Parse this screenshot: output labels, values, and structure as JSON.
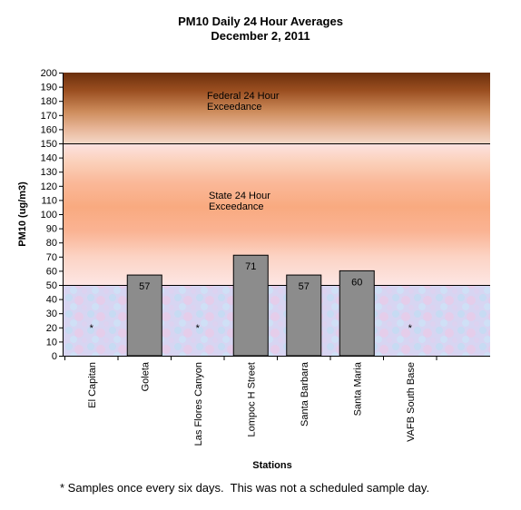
{
  "chart_data": {
    "type": "bar",
    "title": "PM10 Daily 24 Hour Averages",
    "subtitle": "December 2, 2011",
    "xlabel": "Stations",
    "ylabel": "PM10 (ug/m3)",
    "ylim": [
      0,
      200
    ],
    "yticks": [
      0,
      10,
      20,
      30,
      40,
      50,
      60,
      70,
      80,
      90,
      100,
      110,
      120,
      130,
      140,
      150,
      160,
      170,
      180,
      190,
      200
    ],
    "categories": [
      "El Capitan",
      "Goleta",
      "Las Flores Canyon",
      "Lompoc H Street",
      "Santa Barbara",
      "Santa Maria",
      "VAFB South Base"
    ],
    "values": [
      null,
      57,
      null,
      71,
      57,
      60,
      null
    ],
    "data_labels": [
      "*",
      "57",
      "*",
      "71",
      "57",
      "60",
      "*"
    ],
    "threshold_lines": [
      50,
      150
    ],
    "bands": [
      {
        "from": 150,
        "to": 200,
        "label_line1": "Federal 24 Hour",
        "label_line2": "Exceedance"
      },
      {
        "from": 50,
        "to": 150,
        "label_line1": "State 24 Hour",
        "label_line2": "Exceedance"
      }
    ],
    "bar_color": "#8c8c8c",
    "grid": false
  },
  "footnote": "* Samples once every six days.  This was not a scheduled sample day."
}
